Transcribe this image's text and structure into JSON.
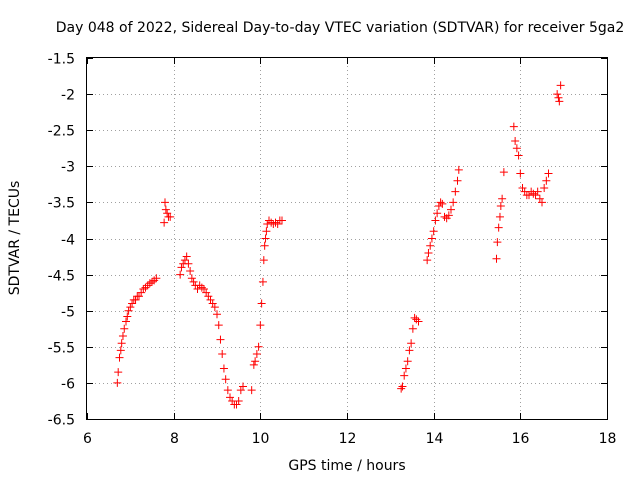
{
  "chart_data": {
    "type": "scatter",
    "title": "Day 048 of 2022, Sidereal Day-to-day VTEC variation (SDTVAR) for receiver 5ga2",
    "xlabel": "GPS time / hours",
    "ylabel": "SDTVAR / TECUs",
    "xlim": [
      6,
      18
    ],
    "ylim": [
      -6.5,
      -1.5
    ],
    "xticks": [
      "6",
      "8",
      "10",
      "12",
      "14",
      "16",
      "18"
    ],
    "yticks": [
      "-1.5",
      "-2",
      "-2.5",
      "-3",
      "-3.5",
      "-4",
      "-4.5",
      "-5",
      "-5.5",
      "-6",
      "-6.5"
    ],
    "xtick_values": [
      6,
      8,
      10,
      12,
      14,
      16,
      18
    ],
    "ytick_values": [
      -1.5,
      -2,
      -2.5,
      -3,
      -3.5,
      -4,
      -4.5,
      -5,
      -5.5,
      -6,
      -6.5
    ],
    "grid": true,
    "marker": "plus",
    "color": "#ff0000",
    "series": [
      {
        "name": "SDTVAR",
        "x": [
          6.7,
          6.72,
          6.75,
          6.78,
          6.8,
          6.83,
          6.86,
          6.9,
          6.93,
          6.96,
          7.0,
          7.04,
          7.08,
          7.12,
          7.16,
          7.2,
          7.25,
          7.3,
          7.35,
          7.4,
          7.45,
          7.5,
          7.55,
          7.6,
          7.78,
          7.8,
          7.82,
          7.85,
          7.88,
          7.92,
          8.15,
          8.18,
          8.22,
          8.26,
          8.3,
          8.34,
          8.38,
          8.42,
          8.46,
          8.5,
          8.55,
          8.6,
          8.65,
          8.7,
          8.75,
          8.8,
          8.85,
          8.9,
          8.95,
          9.0,
          9.04,
          9.08,
          9.12,
          9.16,
          9.2,
          9.25,
          9.3,
          9.35,
          9.4,
          9.45,
          9.5,
          9.55,
          9.6,
          9.8,
          9.85,
          9.88,
          9.92,
          9.96,
          10.0,
          10.03,
          10.06,
          10.08,
          10.1,
          10.12,
          10.14,
          10.16,
          10.2,
          10.25,
          10.3,
          10.35,
          10.4,
          10.45,
          10.5,
          13.25,
          13.28,
          13.32,
          13.36,
          13.4,
          13.44,
          13.48,
          13.52,
          13.56,
          13.6,
          13.65,
          13.85,
          13.88,
          13.92,
          13.96,
          14.0,
          14.04,
          14.08,
          14.12,
          14.16,
          14.2,
          14.25,
          14.3,
          14.35,
          14.4,
          14.45,
          14.5,
          14.55,
          14.58,
          15.45,
          15.47,
          15.5,
          15.53,
          15.55,
          15.58,
          15.62,
          15.85,
          15.88,
          15.92,
          15.96,
          16.0,
          16.05,
          16.1,
          16.15,
          16.2,
          16.25,
          16.3,
          16.35,
          16.4,
          16.45,
          16.5,
          16.55,
          16.6,
          16.65,
          16.85,
          16.88,
          16.9,
          16.93
        ],
        "y": [
          -6.0,
          -5.85,
          -5.65,
          -5.55,
          -5.45,
          -5.35,
          -5.25,
          -5.15,
          -5.08,
          -5.0,
          -4.95,
          -4.9,
          -4.85,
          -4.85,
          -4.8,
          -4.8,
          -4.75,
          -4.7,
          -4.68,
          -4.65,
          -4.62,
          -4.6,
          -4.58,
          -4.55,
          -3.78,
          -3.5,
          -3.6,
          -3.65,
          -3.7,
          -3.7,
          -4.5,
          -4.4,
          -4.35,
          -4.3,
          -4.25,
          -4.35,
          -4.45,
          -4.55,
          -4.6,
          -4.65,
          -4.7,
          -4.65,
          -4.68,
          -4.7,
          -4.75,
          -4.8,
          -4.85,
          -4.9,
          -4.95,
          -5.05,
          -5.2,
          -5.4,
          -5.6,
          -5.8,
          -5.95,
          -6.1,
          -6.2,
          -6.25,
          -6.3,
          -6.3,
          -6.25,
          -6.1,
          -6.05,
          -6.1,
          -5.75,
          -5.7,
          -5.6,
          -5.5,
          -5.2,
          -4.9,
          -4.6,
          -4.3,
          -4.1,
          -4.0,
          -3.9,
          -3.8,
          -3.75,
          -3.78,
          -3.8,
          -3.78,
          -3.8,
          -3.75,
          -3.75,
          -6.08,
          -6.05,
          -5.9,
          -5.8,
          -5.7,
          -5.55,
          -5.45,
          -5.25,
          -5.1,
          -5.12,
          -5.15,
          -4.3,
          -4.2,
          -4.1,
          -4.0,
          -3.9,
          -3.75,
          -3.65,
          -3.55,
          -3.5,
          -3.52,
          -3.7,
          -3.72,
          -3.68,
          -3.6,
          -3.5,
          -3.35,
          -3.2,
          -3.05,
          -4.28,
          -4.05,
          -3.85,
          -3.7,
          -3.55,
          -3.45,
          -3.08,
          -2.45,
          -2.65,
          -2.75,
          -2.85,
          -3.1,
          -3.3,
          -3.35,
          -3.4,
          -3.4,
          -3.35,
          -3.38,
          -3.4,
          -3.35,
          -3.45,
          -3.5,
          -3.3,
          -3.2,
          -3.1,
          -2.0,
          -2.05,
          -2.1,
          -1.88
        ]
      }
    ]
  }
}
